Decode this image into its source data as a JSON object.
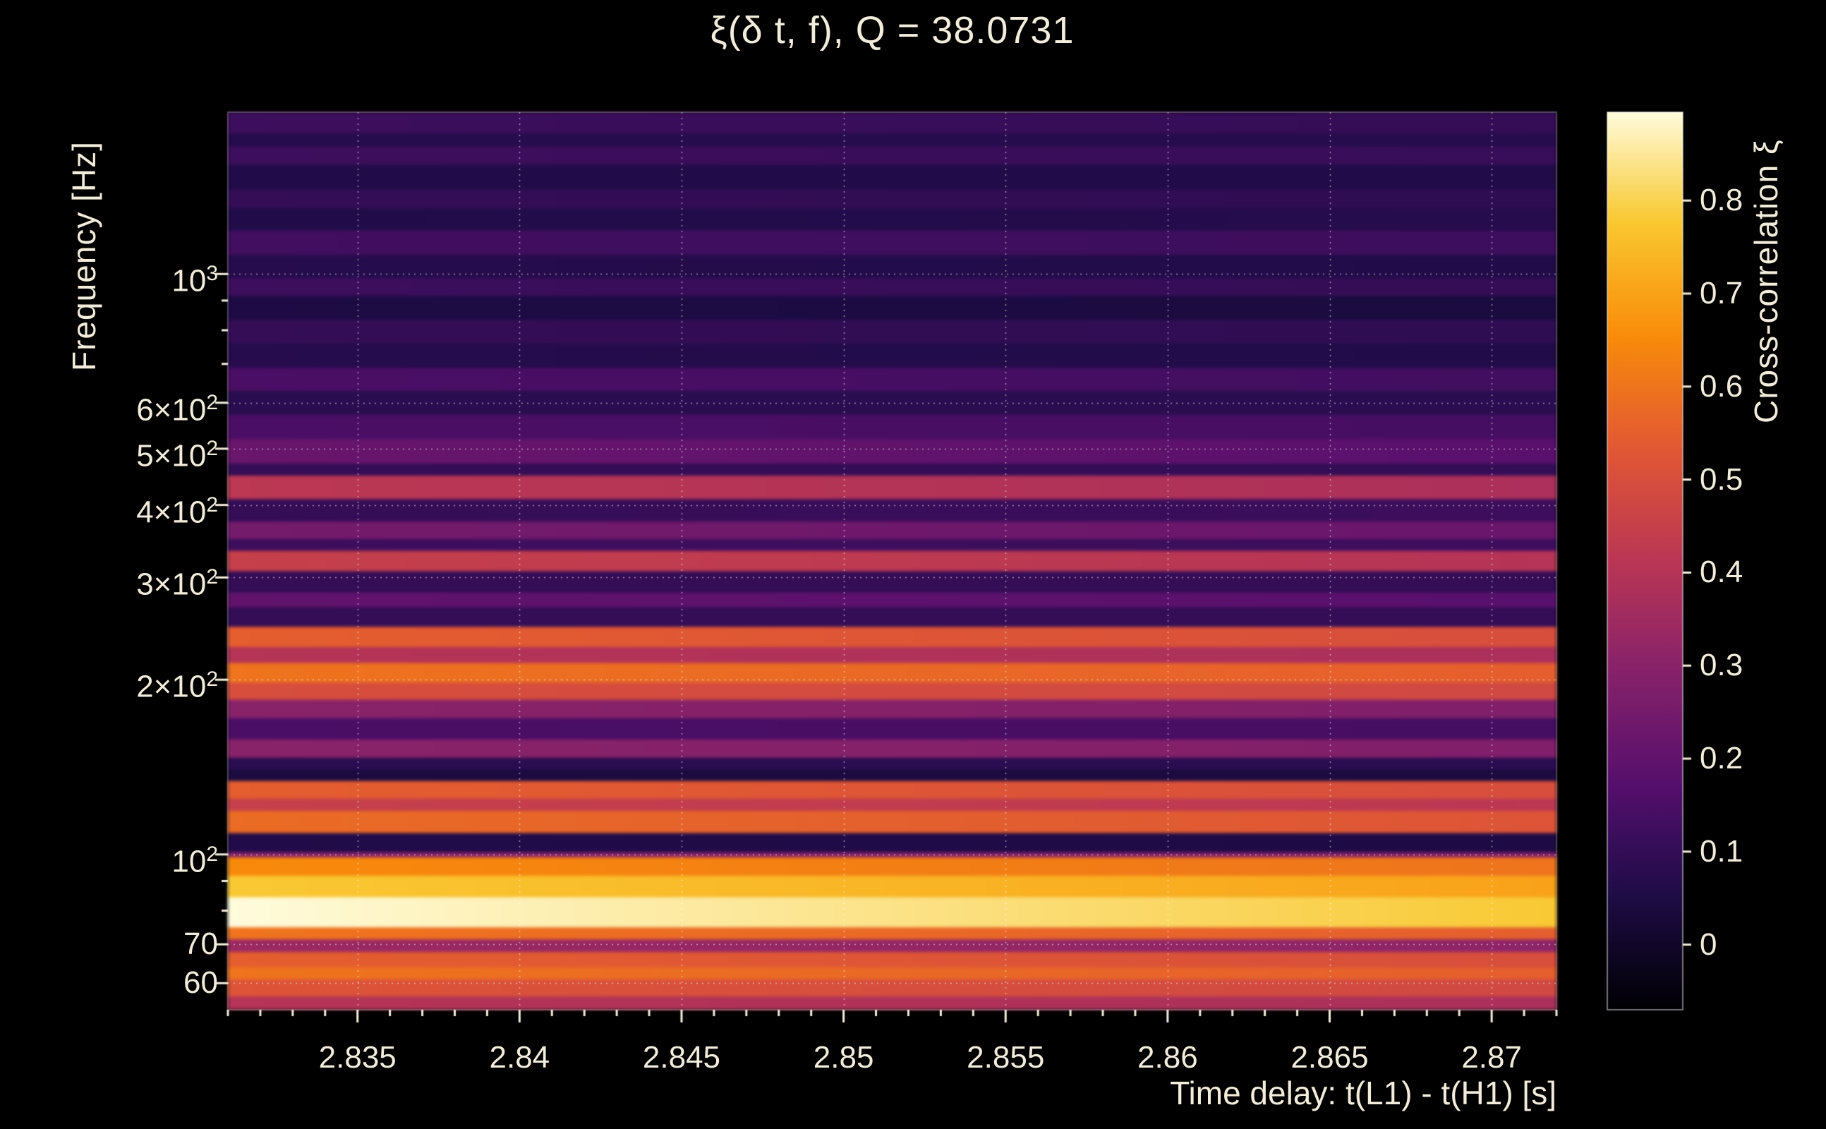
{
  "page": {
    "background": "#000000",
    "text_color": "#f2ecdb",
    "tick_color": "#f2ecdb",
    "grid_color": "#ffffff"
  },
  "chart_data": {
    "type": "heatmap",
    "title": "ξ(δ t, f), Q = 38.0731",
    "xlabel": "Time delay: t(L1) - t(H1) [s]",
    "ylabel": "Frequency [Hz]",
    "colorbar_label": "Cross-correlation ξ",
    "colormap": "inferno",
    "grid": true,
    "x_range": [
      2.831,
      2.872
    ],
    "x_ticks": [
      {
        "value": 2.835,
        "label": "2.835"
      },
      {
        "value": 2.84,
        "label": "2.84"
      },
      {
        "value": 2.845,
        "label": "2.845"
      },
      {
        "value": 2.85,
        "label": "2.85"
      },
      {
        "value": 2.855,
        "label": "2.855"
      },
      {
        "value": 2.86,
        "label": "2.86"
      },
      {
        "value": 2.865,
        "label": "2.865"
      },
      {
        "value": 2.87,
        "label": "2.87"
      }
    ],
    "y_scale": "log",
    "y_range_hz": [
      54,
      1900
    ],
    "y_ticks": [
      {
        "hz": 1000,
        "base": "10",
        "exp": "3"
      },
      {
        "hz": 600,
        "base": "6×10",
        "exp": "2"
      },
      {
        "hz": 500,
        "base": "5×10",
        "exp": "2"
      },
      {
        "hz": 400,
        "base": "4×10",
        "exp": "2"
      },
      {
        "hz": 300,
        "base": "3×10",
        "exp": "2"
      },
      {
        "hz": 200,
        "base": "2×10",
        "exp": "2"
      },
      {
        "hz": 100,
        "base": "10",
        "exp": "2"
      },
      {
        "hz": 70,
        "base": "70",
        "exp": ""
      },
      {
        "hz": 60,
        "base": "60",
        "exp": ""
      }
    ],
    "y_minor_ticks_hz": [
      80,
      90,
      700,
      800,
      900
    ],
    "color_range": [
      -0.07,
      0.895
    ],
    "colorbar_ticks": [
      {
        "value": 0,
        "label": "0"
      },
      {
        "value": 0.1,
        "label": "0.1"
      },
      {
        "value": 0.2,
        "label": "0.2"
      },
      {
        "value": 0.3,
        "label": "0.3"
      },
      {
        "value": 0.4,
        "label": "0.4"
      },
      {
        "value": 0.5,
        "label": "0.5"
      },
      {
        "value": 0.6,
        "label": "0.6"
      },
      {
        "value": 0.7,
        "label": "0.7"
      },
      {
        "value": 0.8,
        "label": "0.8"
      }
    ],
    "bands": [
      {
        "f_lo": 54,
        "f_hi": 57,
        "v_left": 0.4,
        "v_right": 0.38
      },
      {
        "f_lo": 57,
        "f_hi": 61,
        "v_left": 0.52,
        "v_right": 0.48
      },
      {
        "f_lo": 61,
        "f_hi": 64,
        "v_left": 0.6,
        "v_right": 0.55
      },
      {
        "f_lo": 64,
        "f_hi": 68,
        "v_left": 0.55,
        "v_right": 0.5
      },
      {
        "f_lo": 68,
        "f_hi": 71.5,
        "v_left": 0.34,
        "v_right": 0.31
      },
      {
        "f_lo": 71.5,
        "f_hi": 75,
        "v_left": 0.6,
        "v_right": 0.55
      },
      {
        "f_lo": 75,
        "f_hi": 84.5,
        "v_left": 0.91,
        "v_right": 0.78
      },
      {
        "f_lo": 84.5,
        "f_hi": 92,
        "v_left": 0.78,
        "v_right": 0.7
      },
      {
        "f_lo": 92,
        "f_hi": 99,
        "v_left": 0.65,
        "v_right": 0.6
      },
      {
        "f_lo": 99,
        "f_hi": 101,
        "v_left": 0.3,
        "v_right": 0.28
      },
      {
        "f_lo": 101,
        "f_hi": 109,
        "v_left": 0.06,
        "v_right": 0.05
      },
      {
        "f_lo": 109,
        "f_hi": 119,
        "v_left": 0.58,
        "v_right": 0.52
      },
      {
        "f_lo": 119,
        "f_hi": 125,
        "v_left": 0.45,
        "v_right": 0.42
      },
      {
        "f_lo": 125,
        "f_hi": 134,
        "v_left": 0.55,
        "v_right": 0.5
      },
      {
        "f_lo": 134,
        "f_hi": 140,
        "v_left": 0.04,
        "v_right": 0.04
      },
      {
        "f_lo": 140,
        "f_hi": 147,
        "v_left": 0.08,
        "v_right": 0.08
      },
      {
        "f_lo": 147,
        "f_hi": 158,
        "v_left": 0.3,
        "v_right": 0.28
      },
      {
        "f_lo": 158,
        "f_hi": 172,
        "v_left": 0.15,
        "v_right": 0.14
      },
      {
        "f_lo": 172,
        "f_hi": 185,
        "v_left": 0.3,
        "v_right": 0.28
      },
      {
        "f_lo": 185,
        "f_hi": 198,
        "v_left": 0.5,
        "v_right": 0.48
      },
      {
        "f_lo": 198,
        "f_hi": 214,
        "v_left": 0.6,
        "v_right": 0.55
      },
      {
        "f_lo": 214,
        "f_hi": 228,
        "v_left": 0.4,
        "v_right": 0.38
      },
      {
        "f_lo": 228,
        "f_hi": 247,
        "v_left": 0.55,
        "v_right": 0.5
      },
      {
        "f_lo": 247,
        "f_hi": 267,
        "v_left": 0.1,
        "v_right": 0.1
      },
      {
        "f_lo": 267,
        "f_hi": 283,
        "v_left": 0.2,
        "v_right": 0.18
      },
      {
        "f_lo": 283,
        "f_hi": 308,
        "v_left": 0.1,
        "v_right": 0.1
      },
      {
        "f_lo": 308,
        "f_hi": 334,
        "v_left": 0.45,
        "v_right": 0.4
      },
      {
        "f_lo": 334,
        "f_hi": 350,
        "v_left": 0.12,
        "v_right": 0.12
      },
      {
        "f_lo": 350,
        "f_hi": 375,
        "v_left": 0.25,
        "v_right": 0.22
      },
      {
        "f_lo": 375,
        "f_hi": 410,
        "v_left": 0.1,
        "v_right": 0.12
      },
      {
        "f_lo": 410,
        "f_hi": 450,
        "v_left": 0.42,
        "v_right": 0.38
      },
      {
        "f_lo": 450,
        "f_hi": 472,
        "v_left": 0.1,
        "v_right": 0.1
      },
      {
        "f_lo": 472,
        "f_hi": 520,
        "v_left": 0.22,
        "v_right": 0.18
      },
      {
        "f_lo": 520,
        "f_hi": 573,
        "v_left": 0.15,
        "v_right": 0.14
      },
      {
        "f_lo": 573,
        "f_hi": 630,
        "v_left": 0.08,
        "v_right": 0.08
      },
      {
        "f_lo": 630,
        "f_hi": 690,
        "v_left": 0.15,
        "v_right": 0.13
      },
      {
        "f_lo": 690,
        "f_hi": 760,
        "v_left": 0.07,
        "v_right": 0.06
      },
      {
        "f_lo": 760,
        "f_hi": 835,
        "v_left": 0.1,
        "v_right": 0.09
      },
      {
        "f_lo": 835,
        "f_hi": 918,
        "v_left": 0.05,
        "v_right": 0.04
      },
      {
        "f_lo": 918,
        "f_hi": 985,
        "v_left": 0.12,
        "v_right": 0.1
      },
      {
        "f_lo": 985,
        "f_hi": 1080,
        "v_left": 0.07,
        "v_right": 0.06
      },
      {
        "f_lo": 1080,
        "f_hi": 1190,
        "v_left": 0.13,
        "v_right": 0.12
      },
      {
        "f_lo": 1190,
        "f_hi": 1300,
        "v_left": 0.06,
        "v_right": 0.07
      },
      {
        "f_lo": 1300,
        "f_hi": 1400,
        "v_left": 0.1,
        "v_right": 0.09
      },
      {
        "f_lo": 1400,
        "f_hi": 1545,
        "v_left": 0.06,
        "v_right": 0.06
      },
      {
        "f_lo": 1545,
        "f_hi": 1660,
        "v_left": 0.12,
        "v_right": 0.11
      },
      {
        "f_lo": 1660,
        "f_hi": 1750,
        "v_left": 0.07,
        "v_right": 0.07
      },
      {
        "f_lo": 1750,
        "f_hi": 1900,
        "v_left": 0.12,
        "v_right": 0.1
      }
    ]
  }
}
